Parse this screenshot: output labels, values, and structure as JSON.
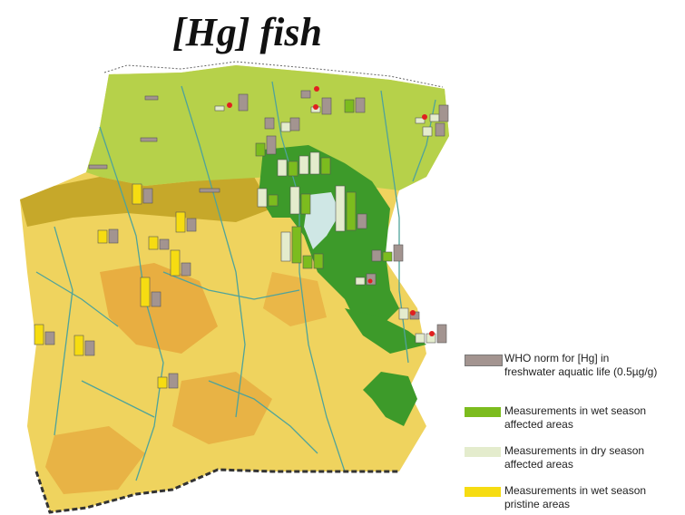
{
  "title": "[Hg] fish",
  "colors": {
    "who_norm": "#a39490",
    "wet_affected": "#7cbc1e",
    "dry_affected": "#e4eccd",
    "wet_pristine": "#f6dc12",
    "marker": "#e02020",
    "affected_area": "#3d9a2a",
    "coastal": "#b6d14a",
    "upland": "#c6a82a",
    "interior": "#efd35e",
    "river": "#4fa39a"
  },
  "legend": [
    {
      "key": "who_norm",
      "label_line1": "WHO norm for [Hg] in",
      "label_line2": "freshwater aquatic life (0.5µg/g)"
    },
    {
      "key": "wet_affected",
      "label_line1": "Measurements in wet season",
      "label_line2": "affected areas"
    },
    {
      "key": "dry_affected",
      "label_line1": "Measurements in dry season",
      "label_line2": "affected areas"
    },
    {
      "key": "wet_pristine",
      "label_line1": "Measurements in wet season",
      "label_line2": "pristine areas"
    }
  ]
}
